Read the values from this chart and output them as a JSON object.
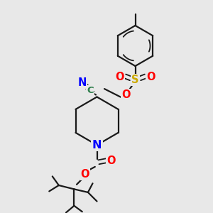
{
  "bg_color": "#e8e8e8",
  "bond_color": "#1a1a1a",
  "N_color": "#0000ff",
  "O_color": "#ff0000",
  "S_color": "#ccaa00",
  "C_label_color": "#2d7d4a",
  "figsize": [
    3.0,
    3.0
  ],
  "dpi": 100,
  "xlim": [
    0,
    10
  ],
  "ylim": [
    0,
    10
  ]
}
